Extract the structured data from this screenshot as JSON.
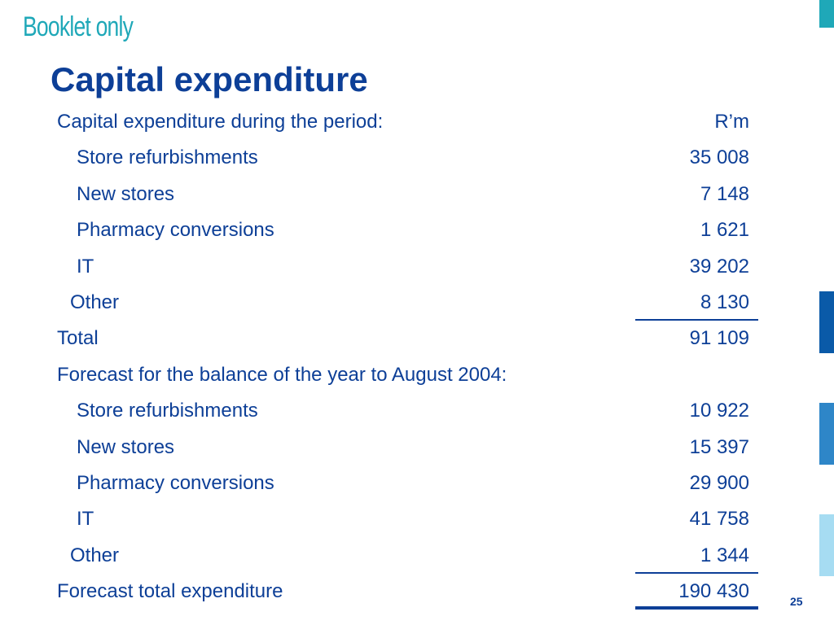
{
  "header": {
    "tag": "Booklet only",
    "title": "Capital expenditure"
  },
  "table": {
    "rows": [
      {
        "label": "Capital expenditure during the period:",
        "value": "R’m"
      },
      {
        "label": "Store refurbishments",
        "value": "35 008"
      },
      {
        "label": "New stores",
        "value": "7 148"
      },
      {
        "label": "Pharmacy conversions",
        "value": "1 621"
      },
      {
        "label": "IT",
        "value": "39 202"
      },
      {
        "label": "Other",
        "value": "8 130"
      },
      {
        "label": "Total",
        "value": "91 109"
      },
      {
        "label": "Forecast for the balance of the year to August 2004:",
        "value": ""
      },
      {
        "label": "Store refurbishments",
        "value": "10 922"
      },
      {
        "label": "New stores",
        "value": "15 397"
      },
      {
        "label": "Pharmacy conversions",
        "value": "29 900"
      },
      {
        "label": "IT",
        "value": "41 758"
      },
      {
        "label": "Other",
        "value": "1 344"
      },
      {
        "label": "Forecast total expenditure",
        "value": "190 430"
      }
    ]
  },
  "footer": {
    "page_number": "25"
  },
  "colors": {
    "text": "#0d3f97",
    "tag": "#1fa8b8",
    "bar_teal": "#1fa8b8",
    "bar_dark_blue": "#0a5aa8",
    "bar_mid_blue": "#2e86c8",
    "bar_light_blue": "#a6dcf2"
  }
}
